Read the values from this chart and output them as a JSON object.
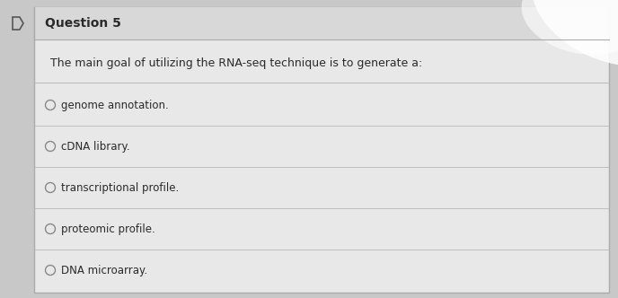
{
  "outer_bg": "#c8c8c8",
  "card_bg": "#e8e8e8",
  "header_bg": "#d8d8d8",
  "header_label": "D",
  "header_title": "Question 5",
  "question_text": "The main goal of utilizing the RNA-seq technique is to generate a:",
  "options": [
    "genome annotation.",
    "cDNA library.",
    "transcriptional profile.",
    "proteomic profile.",
    "DNA microarray."
  ],
  "divider_color": "#b8b8b8",
  "text_color": "#2a2a2a",
  "circle_color": "#888888",
  "header_font_size": 10,
  "question_font_size": 9,
  "option_font_size": 8.5,
  "glare_color": "#ffffff"
}
